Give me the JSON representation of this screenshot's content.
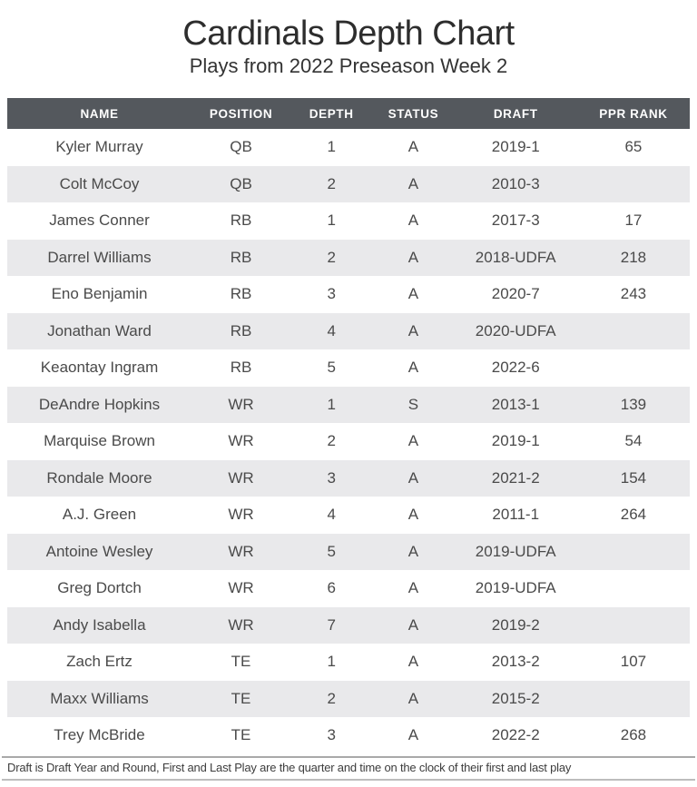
{
  "title": "Cardinals Depth Chart",
  "subtitle": "Plays from 2022 Preseason Week 2",
  "colors": {
    "header_bg": "#54585d",
    "header_text": "#ffffff",
    "row_alt_bg": "#e9e9eb",
    "body_text": "#4a4a4a",
    "title_text": "#2d2d2d"
  },
  "table": {
    "columns": [
      "NAME",
      "POSITION",
      "DEPTH",
      "STATUS",
      "DRAFT",
      "PPR RANK"
    ],
    "keys": [
      "name",
      "position",
      "depth",
      "status",
      "draft",
      "ppr_rank"
    ],
    "rows": [
      {
        "name": "Kyler Murray",
        "position": "QB",
        "depth": "1",
        "status": "A",
        "draft": "2019-1",
        "ppr_rank": "65"
      },
      {
        "name": "Colt McCoy",
        "position": "QB",
        "depth": "2",
        "status": "A",
        "draft": "2010-3",
        "ppr_rank": ""
      },
      {
        "name": "James Conner",
        "position": "RB",
        "depth": "1",
        "status": "A",
        "draft": "2017-3",
        "ppr_rank": "17"
      },
      {
        "name": "Darrel Williams",
        "position": "RB",
        "depth": "2",
        "status": "A",
        "draft": "2018-UDFA",
        "ppr_rank": "218"
      },
      {
        "name": "Eno Benjamin",
        "position": "RB",
        "depth": "3",
        "status": "A",
        "draft": "2020-7",
        "ppr_rank": "243"
      },
      {
        "name": "Jonathan Ward",
        "position": "RB",
        "depth": "4",
        "status": "A",
        "draft": "2020-UDFA",
        "ppr_rank": ""
      },
      {
        "name": "Keaontay Ingram",
        "position": "RB",
        "depth": "5",
        "status": "A",
        "draft": "2022-6",
        "ppr_rank": ""
      },
      {
        "name": "DeAndre Hopkins",
        "position": "WR",
        "depth": "1",
        "status": "S",
        "draft": "2013-1",
        "ppr_rank": "139"
      },
      {
        "name": "Marquise Brown",
        "position": "WR",
        "depth": "2",
        "status": "A",
        "draft": "2019-1",
        "ppr_rank": "54"
      },
      {
        "name": "Rondale Moore",
        "position": "WR",
        "depth": "3",
        "status": "A",
        "draft": "2021-2",
        "ppr_rank": "154"
      },
      {
        "name": "A.J. Green",
        "position": "WR",
        "depth": "4",
        "status": "A",
        "draft": "2011-1",
        "ppr_rank": "264"
      },
      {
        "name": "Antoine Wesley",
        "position": "WR",
        "depth": "5",
        "status": "A",
        "draft": "2019-UDFA",
        "ppr_rank": ""
      },
      {
        "name": "Greg Dortch",
        "position": "WR",
        "depth": "6",
        "status": "A",
        "draft": "2019-UDFA",
        "ppr_rank": ""
      },
      {
        "name": "Andy Isabella",
        "position": "WR",
        "depth": "7",
        "status": "A",
        "draft": "2019-2",
        "ppr_rank": ""
      },
      {
        "name": "Zach Ertz",
        "position": "TE",
        "depth": "1",
        "status": "A",
        "draft": "2013-2",
        "ppr_rank": "107"
      },
      {
        "name": "Maxx Williams",
        "position": "TE",
        "depth": "2",
        "status": "A",
        "draft": "2015-2",
        "ppr_rank": ""
      },
      {
        "name": "Trey McBride",
        "position": "TE",
        "depth": "3",
        "status": "A",
        "draft": "2022-2",
        "ppr_rank": "268"
      }
    ]
  },
  "footnote": "Draft is Draft Year and Round, First and Last Play are the quarter and time on the clock of their first and last play"
}
